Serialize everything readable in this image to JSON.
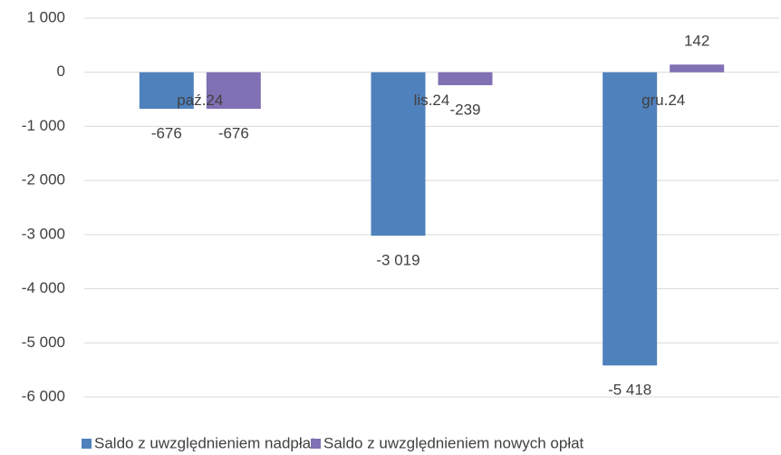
{
  "chart_data": {
    "type": "bar",
    "categories": [
      "paź.24",
      "lis.24",
      "gru.24"
    ],
    "series": [
      {
        "name": "Saldo z uwzględnieniem nadpłat",
        "color": "#4f81bd",
        "values": [
          -676,
          -3019,
          -5418
        ],
        "value_labels": [
          "-676",
          "-3 019",
          "-5 418"
        ]
      },
      {
        "name": "Saldo z uwzględnieniem nowych opłat",
        "color": "#8070b4",
        "values": [
          -676,
          -239,
          142
        ],
        "value_labels": [
          "-676",
          "-239",
          "142"
        ]
      }
    ],
    "ylim": [
      -6000,
      1000
    ],
    "yticks": [
      {
        "value": 1000,
        "label": "1 000"
      },
      0,
      {
        "value": -1000,
        "label": "-1 000"
      },
      {
        "value": -2000,
        "label": "-2 000"
      },
      {
        "value": -3000,
        "label": "-3 000"
      },
      {
        "value": -4000,
        "label": "-4 000"
      },
      {
        "value": -5000,
        "label": "-5 000"
      },
      {
        "value": -6000,
        "label": "-6 000"
      }
    ],
    "grid": true,
    "legend": "bottom"
  }
}
